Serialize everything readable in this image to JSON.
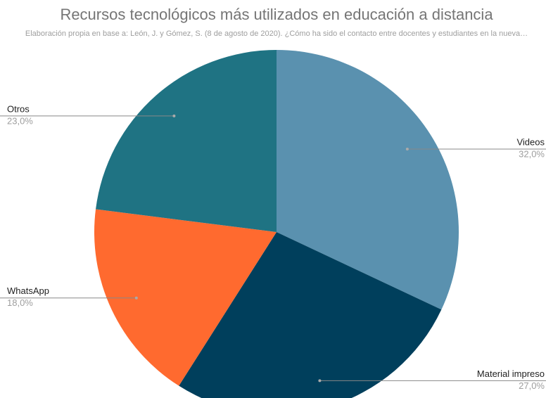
{
  "chart_data": {
    "type": "pie",
    "title": "Recursos tecnológicos más utilizados en educación a distancia",
    "subtitle": "Elaboración propia en base a: León, J. y Gómez, S. (8 de agosto de 2020). ¿Cómo ha sido el contacto entre docentes y estudiantes en la nueva…",
    "categories": [
      "Videos",
      "Material impreso",
      "WhatsApp",
      "Otros"
    ],
    "values": [
      32,
      27,
      18,
      23
    ],
    "value_labels": [
      "32,0%",
      "27,0%",
      "18,0%",
      "23,0%"
    ],
    "colors": [
      "#5a91af",
      "#003f5c",
      "#ff6a2f",
      "#1f7383"
    ]
  }
}
